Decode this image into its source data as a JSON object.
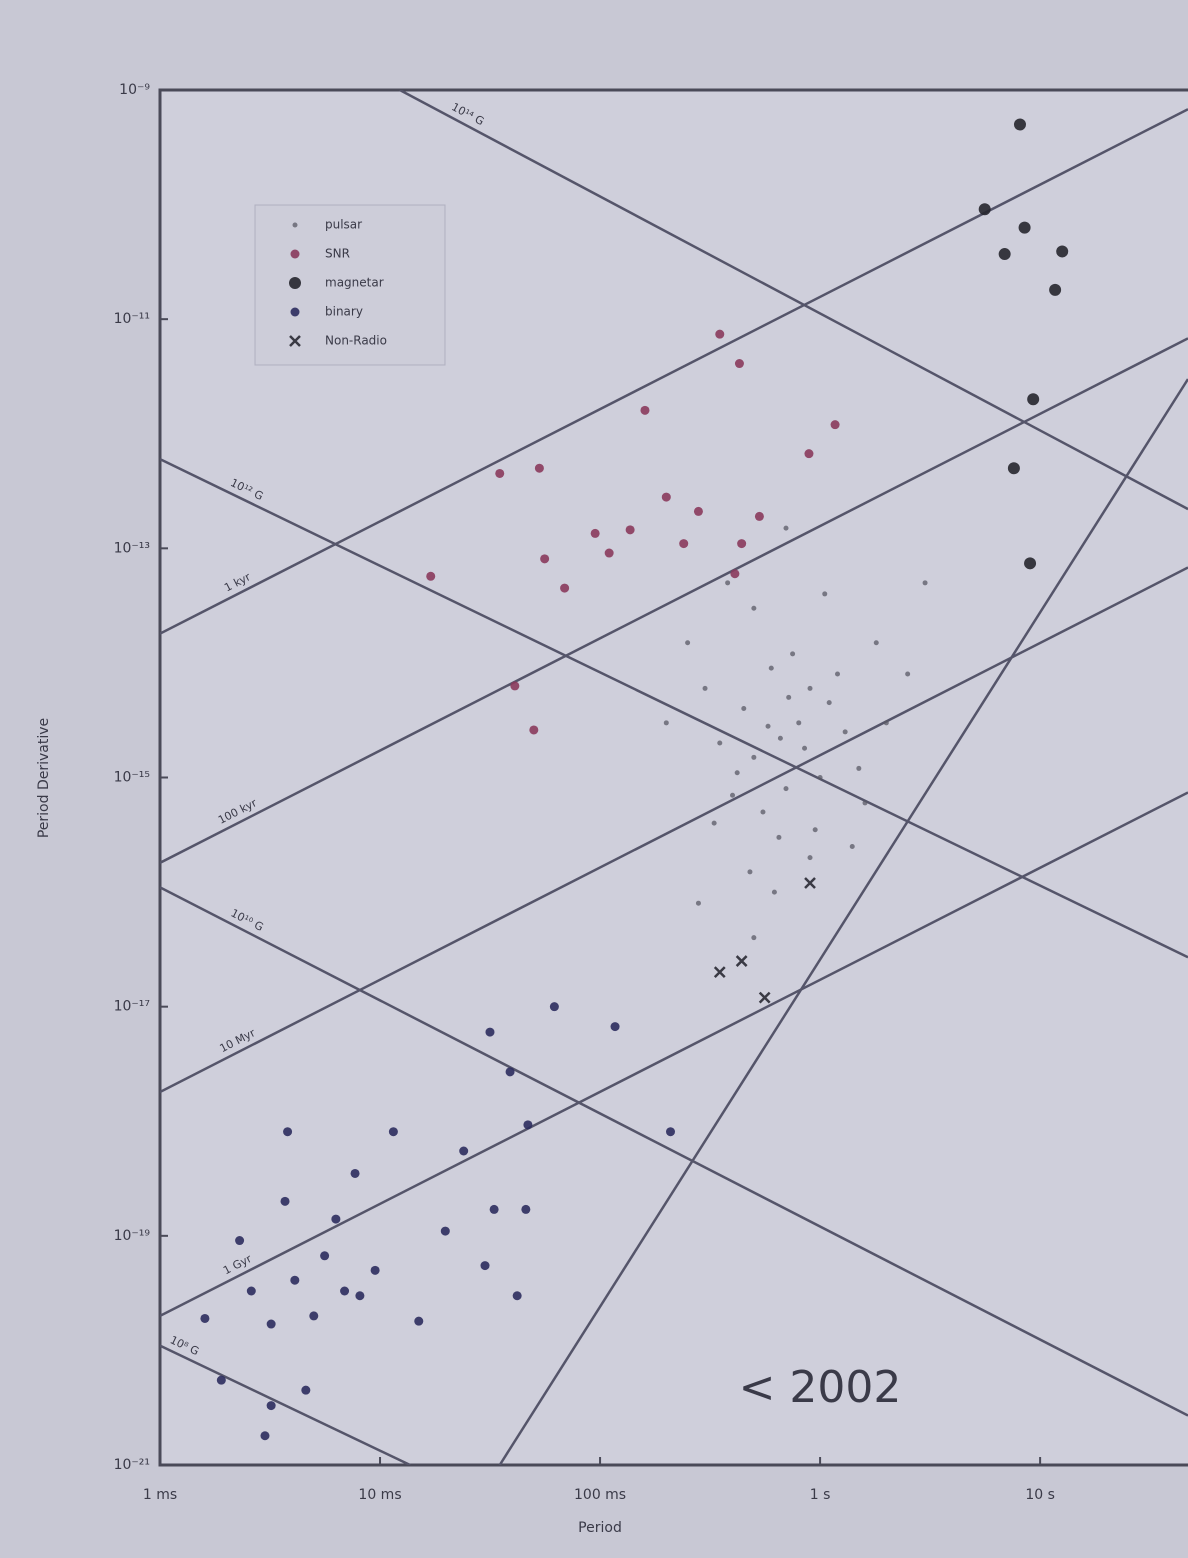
{
  "chart_data": {
    "type": "scatter",
    "annotation": "< 2002",
    "x_label": "Period",
    "y_label": "Period Derivative",
    "xscale": "log",
    "yscale": "log",
    "xlim": [
      0.001,
      47
    ],
    "ylim": [
      1e-21,
      1e-09
    ],
    "xticks": [
      {
        "value": 0.001,
        "label": "1 ms"
      },
      {
        "value": 0.01,
        "label": "10 ms"
      },
      {
        "value": 0.1,
        "label": "100 ms"
      },
      {
        "value": 1,
        "label": "1 s"
      },
      {
        "value": 10,
        "label": "10 s"
      }
    ],
    "yticks": [
      {
        "value": 1e-09,
        "label": "10⁻⁹"
      },
      {
        "value": 1e-11,
        "label": "10⁻¹¹"
      },
      {
        "value": 1e-13,
        "label": "10⁻¹³"
      },
      {
        "value": 1e-15,
        "label": "10⁻¹⁵"
      },
      {
        "value": 1e-17,
        "label": "10⁻¹⁷"
      },
      {
        "value": 1e-19,
        "label": "10⁻¹⁹"
      },
      {
        "value": 1e-21,
        "label": "10⁻²¹"
      }
    ],
    "legend": "upper left",
    "reference_lines": [
      {
        "label": "1 kyr",
        "x": [
          0.001,
          47
        ],
        "y": [
          1.8e-14,
          6.8e-10
        ]
      },
      {
        "label": "100 kyr",
        "x": [
          0.001,
          47
        ],
        "y": [
          1.8e-16,
          6.8e-12
        ]
      },
      {
        "label": "10 Myr",
        "x": [
          0.001,
          47
        ],
        "y": [
          1.8e-18,
          6.8e-14
        ]
      },
      {
        "label": "1 Gyr",
        "x": [
          0.001,
          47
        ],
        "y": [
          2e-20,
          7.4e-16
        ]
      },
      {
        "label": "10¹⁴ G",
        "x": [
          0.0123,
          47
        ],
        "y": [
          1e-09,
          2.2e-13
        ]
      },
      {
        "label": "10¹² G",
        "x": [
          0.001,
          47
        ],
        "y": [
          6e-13,
          2.7e-17
        ]
      },
      {
        "label": "10¹⁰ G",
        "x": [
          0.001,
          47
        ],
        "y": [
          1.1e-16,
          2.7e-21
        ]
      },
      {
        "label": "10⁸ G",
        "x": [
          0.001,
          0.0137
        ],
        "y": [
          1.1e-20,
          1e-21
        ]
      },
      {
        "x": [
          0.035,
          47
        ],
        "y": [
          1e-21,
          3e-12
        ]
      }
    ],
    "series": [
      {
        "name": "pulsar",
        "color": "#5a5a66",
        "marker": "dot",
        "x": [
          0.66,
          0.5,
          0.8,
          1.0,
          0.45,
          0.9,
          0.7,
          1.3,
          0.35,
          0.55,
          1.1,
          0.6,
          0.75,
          0.4,
          1.5,
          0.3,
          0.95,
          1.2,
          0.5,
          0.25,
          0.65,
          2.0,
          0.85,
          0.42,
          1.6,
          0.58,
          0.72,
          0.33,
          1.8,
          0.2,
          0.9,
          1.4,
          0.48,
          0.62,
          2.5,
          0.28,
          0.38,
          1.05,
          3.0,
          0.5,
          0.7
        ],
        "values": [
          2.2e-15,
          1.5e-15,
          3e-15,
          1e-15,
          4e-15,
          6e-15,
          8e-16,
          2.5e-15,
          2e-15,
          5e-16,
          4.5e-15,
          9e-15,
          1.2e-14,
          7e-16,
          1.2e-15,
          6e-15,
          3.5e-16,
          8e-15,
          3e-14,
          1.5e-14,
          3e-16,
          3e-15,
          1.8e-15,
          1.1e-15,
          6e-16,
          2.8e-15,
          5e-15,
          4e-16,
          1.5e-14,
          3e-15,
          2e-16,
          2.5e-16,
          1.5e-16,
          1e-16,
          8e-15,
          8e-17,
          5e-14,
          4e-14,
          5e-14,
          4e-17,
          1.5e-13
        ]
      },
      {
        "name": "SNR",
        "color": "#8a3a5c",
        "marker": "circle",
        "x": [
          0.35,
          0.43,
          0.16,
          1.17,
          0.89,
          0.035,
          0.053,
          0.2,
          0.28,
          0.53,
          0.095,
          0.137,
          0.11,
          0.056,
          0.069,
          0.24,
          0.44,
          0.41,
          0.017,
          0.041,
          0.05
        ],
        "values": [
          7.4e-12,
          4.1e-12,
          1.6e-12,
          1.2e-12,
          6.7e-13,
          4.5e-13,
          5e-13,
          2.8e-13,
          2.1e-13,
          1.9e-13,
          1.35e-13,
          1.45e-13,
          9.1e-14,
          8.1e-14,
          4.5e-14,
          1.1e-13,
          1.1e-13,
          6e-14,
          5.7e-14,
          6.3e-15,
          2.6e-15
        ]
      },
      {
        "name": "magnetar",
        "color": "#26262e",
        "marker": "big",
        "x": [
          8.1,
          5.6,
          8.5,
          6.9,
          12.6,
          11.7,
          9.3,
          7.6,
          9.0
        ],
        "values": [
          5e-10,
          9.1e-11,
          6.3e-11,
          3.7e-11,
          3.9e-11,
          1.8e-11,
          2e-12,
          5e-13,
          7.4e-14
        ]
      },
      {
        "name": "binary",
        "color": "#2c2c5e",
        "marker": "circle",
        "x": [
          0.0038,
          0.0115,
          0.0077,
          0.0316,
          0.062,
          0.117,
          0.039,
          0.047,
          0.024,
          0.209,
          0.0037,
          0.0023,
          0.0063,
          0.0198,
          0.033,
          0.046,
          0.0016,
          0.0026,
          0.0041,
          0.005,
          0.0032,
          0.0081,
          0.0095,
          0.015,
          0.03,
          0.042,
          0.0019,
          0.0032,
          0.0046,
          0.003,
          0.0056,
          0.0069
        ],
        "values": [
          8.1e-19,
          8.1e-19,
          3.5e-19,
          6e-18,
          1e-17,
          6.7e-18,
          2.7e-18,
          9.3e-19,
          5.5e-19,
          8.1e-19,
          2e-19,
          9.1e-20,
          1.4e-19,
          1.1e-19,
          1.7e-19,
          1.7e-19,
          1.9e-20,
          3.3e-20,
          4.1e-20,
          2e-20,
          1.7e-20,
          3e-20,
          5e-20,
          1.8e-20,
          5.5e-20,
          3e-20,
          5.5e-21,
          3.3e-21,
          4.5e-21,
          1.8e-21,
          6.7e-20,
          3.3e-20
        ]
      },
      {
        "name": "Non-Radio",
        "color": "#3a3a44",
        "marker": "cross",
        "x": [
          0.9,
          0.44,
          0.56,
          0.35
        ],
        "values": [
          1.2e-16,
          2.5e-17,
          1.2e-17,
          2e-17
        ]
      }
    ]
  }
}
